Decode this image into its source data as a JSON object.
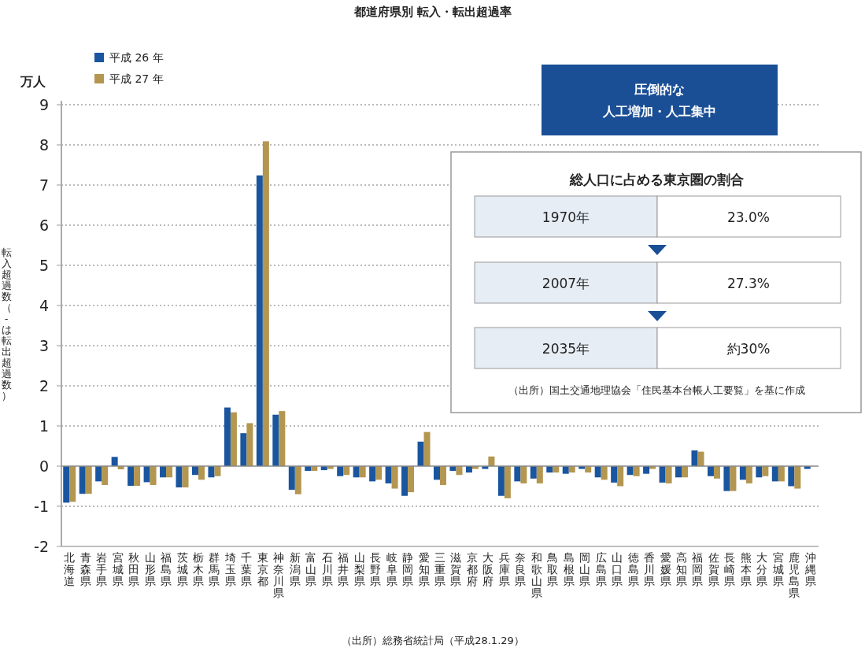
{
  "chart_data": [
    {
      "type": "bar",
      "title": "都道府県別 転入・転出超過率",
      "ylabel": "転入超過数（-は転出超過数）",
      "categories": [
        "北海道",
        "青森県",
        "岩手県",
        "宮城県",
        "秋田県",
        "山形県",
        "福島県",
        "茨城県",
        "栃木県",
        "群馬県",
        "埼玉県",
        "千葉県",
        "東京都",
        "神奈川県",
        "新潟県",
        "富山県",
        "石川県",
        "福井県",
        "山梨県",
        "長野県",
        "岐阜県",
        "静岡県",
        "愛知県",
        "三重県",
        "滋賀県",
        "京都府",
        "大阪府",
        "兵庫県",
        "奈良県",
        "和歌山県",
        "鳥取県",
        "島根県",
        "岡山県",
        "広島県",
        "山口県",
        "徳島県",
        "香川県",
        "愛媛県",
        "高知県",
        "福岡県",
        "佐賀県",
        "長崎県",
        "熊本県",
        "大分県",
        "宮城県",
        "鹿児島県",
        "沖縄県"
      ],
      "series": [
        {
          "name": "平成 26 年",
          "color": "#1a55a0",
          "values": [
            -0.91,
            -0.69,
            -0.38,
            0.23,
            -0.49,
            -0.4,
            -0.28,
            -0.53,
            -0.22,
            -0.28,
            1.46,
            0.82,
            7.24,
            1.28,
            -0.59,
            -0.12,
            -0.1,
            -0.25,
            -0.28,
            -0.38,
            -0.43,
            -0.74,
            0.61,
            -0.34,
            -0.12,
            -0.16,
            -0.07,
            -0.74,
            -0.38,
            -0.31,
            -0.16,
            -0.19,
            -0.07,
            -0.28,
            -0.41,
            -0.22,
            -0.19,
            -0.41,
            -0.28,
            0.39,
            -0.25,
            -0.62,
            -0.34,
            -0.28,
            -0.38,
            -0.5,
            -0.07
          ]
        },
        {
          "name": "平成 27 年",
          "color": "#b39650",
          "values": [
            -0.89,
            -0.69,
            -0.47,
            -0.08,
            -0.49,
            -0.47,
            -0.28,
            -0.53,
            -0.34,
            -0.25,
            1.34,
            1.07,
            8.09,
            1.37,
            -0.7,
            -0.12,
            -0.07,
            -0.22,
            -0.28,
            -0.34,
            -0.56,
            -0.65,
            0.85,
            -0.47,
            -0.22,
            -0.07,
            0.24,
            -0.8,
            -0.43,
            -0.43,
            -0.16,
            -0.16,
            -0.16,
            -0.34,
            -0.5,
            -0.25,
            -0.07,
            -0.43,
            -0.28,
            0.36,
            -0.31,
            -0.62,
            -0.43,
            -0.25,
            -0.38,
            -0.56,
            0
          ]
        }
      ],
      "ylim": [
        -2,
        9
      ],
      "yticks": [
        -2,
        -1,
        0,
        1,
        2,
        3,
        4,
        5,
        6,
        7,
        8,
        9
      ],
      "grid": "y",
      "legend": "top left",
      "annotations": [
        "万人",
        "圧倒的な",
        "人工増加・人工集中",
        "（出所）総務省統計局（平成28.1.29）"
      ]
    },
    {
      "type": "other",
      "title": "総人口に占める東京圏の割合",
      "categories": [
        "1970年",
        "2007年",
        "2035年"
      ],
      "value_labels": [
        "23.0%",
        "27.3%",
        "約30%"
      ],
      "annotations": [
        "（出所）国土交通地理協会「住民基本台帳人工要覧」を基に作成"
      ]
    }
  ]
}
